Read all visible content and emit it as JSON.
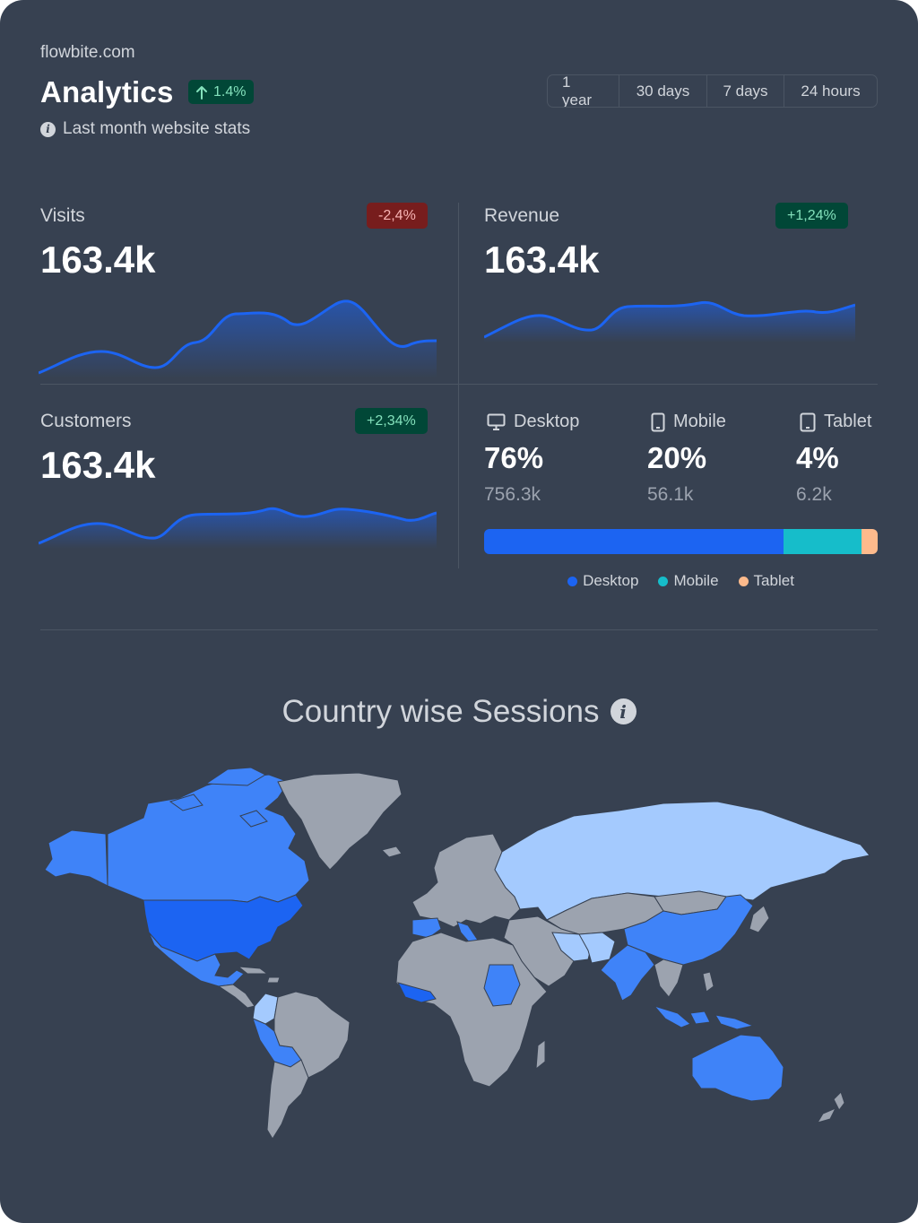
{
  "header": {
    "site": "flowbite.com",
    "title": "Analytics",
    "growth": "1.4%",
    "subtitle": "Last month website stats"
  },
  "ranges": [
    "1 year",
    "30 days",
    "7 days",
    "24 hours"
  ],
  "stats": {
    "visits": {
      "label": "Visits",
      "value": "163.4k",
      "change": "-2,4%"
    },
    "revenue": {
      "label": "Revenue",
      "value": "163.4k",
      "change": "+1,24%"
    },
    "customers": {
      "label": "Customers",
      "value": "163.4k",
      "change": "+2,34%"
    }
  },
  "devices": [
    {
      "label": "Desktop",
      "percent": "76%",
      "count": "756.3k",
      "share": 76,
      "color": "#1c64f2",
      "icon": "desktop-icon"
    },
    {
      "label": "Mobile",
      "percent": "20%",
      "count": "56.1k",
      "share": 20,
      "color": "#16bdca",
      "icon": "mobile-icon"
    },
    {
      "label": "Tablet",
      "percent": "4%",
      "count": "6.2k",
      "share": 4,
      "color": "#fdba8c",
      "icon": "tablet-icon"
    }
  ],
  "map": {
    "title": "Country wise Sessions",
    "colors": {
      "none": "#9ca3af",
      "low": "#a4cafe",
      "mid": "#3f83f8",
      "high": "#1c64f2"
    }
  },
  "colors": {
    "card": "#374151",
    "line": "#1c64f2"
  }
}
